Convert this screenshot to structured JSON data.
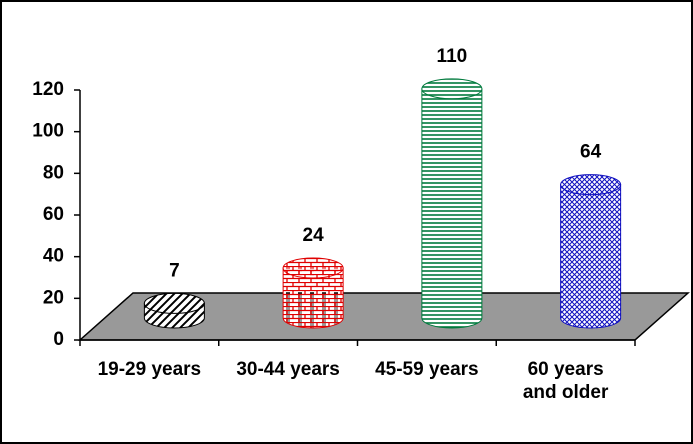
{
  "chart_data": {
    "type": "bar3d",
    "categories": [
      "19-29 years",
      "30-44 years",
      "45-59 years",
      "60 years and older"
    ],
    "values": [
      7,
      24,
      110,
      64
    ],
    "colors": [
      "#000000",
      "#e00000",
      "#007a3d",
      "#1010c0"
    ],
    "ylim": [
      0,
      120
    ],
    "yticks": [
      0,
      20,
      40,
      60,
      80,
      100,
      120
    ]
  }
}
